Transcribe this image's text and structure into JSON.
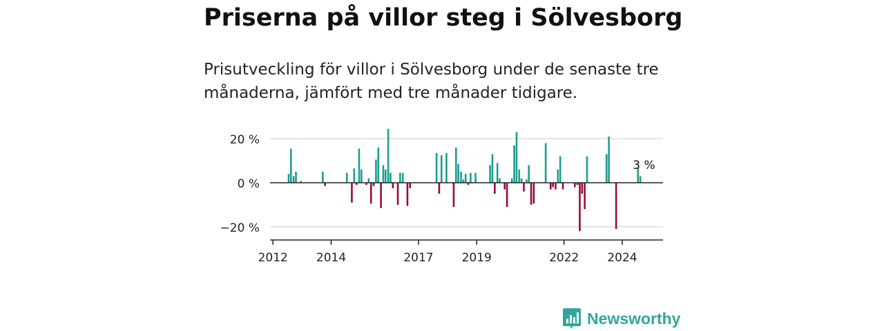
{
  "title": "Priserna på villor steg i Sölvesborg",
  "subtitle": "Prisutveckling för villor i Sölvesborg under de senaste tre månaderna, jämfört med tre månader tidigare.",
  "brand": {
    "name": "Newsworthy"
  },
  "colors": {
    "positive": "#1a9e90",
    "negative": "#960a3c",
    "grid": "#dddddd",
    "axis": "#222222",
    "brand": "#2fa89b"
  },
  "chart_data": {
    "type": "bar",
    "ylim": [
      -26,
      26
    ],
    "xlim": [
      2011.9,
      2025.4
    ],
    "grid": true,
    "y_ticks": [
      {
        "value": 20,
        "label": "20 %"
      },
      {
        "value": 0,
        "label": "0 %"
      },
      {
        "value": -20,
        "label": "−20 %"
      }
    ],
    "x_ticks": [
      {
        "value": 2012,
        "label": "2012"
      },
      {
        "value": 2014,
        "label": "2014"
      },
      {
        "value": 2017,
        "label": "2017"
      },
      {
        "value": 2019,
        "label": "2019"
      },
      {
        "value": 2022,
        "label": "2022"
      },
      {
        "value": 2024,
        "label": "2024"
      }
    ],
    "annotation": {
      "x": 2024.7,
      "value": 3,
      "label": "3 %"
    },
    "x": [
      2012.54,
      2012.62,
      2012.71,
      2012.79,
      2012.96,
      2013.71,
      2013.79,
      2014.54,
      2014.71,
      2014.79,
      2014.87,
      2014.96,
      2015.04,
      2015.21,
      2015.29,
      2015.37,
      2015.46,
      2015.54,
      2015.62,
      2015.71,
      2015.79,
      2015.87,
      2015.96,
      2016.04,
      2016.12,
      2016.29,
      2016.37,
      2016.46,
      2016.62,
      2016.71,
      2017.62,
      2017.71,
      2017.79,
      2017.96,
      2018.21,
      2018.29,
      2018.37,
      2018.46,
      2018.54,
      2018.62,
      2018.71,
      2018.79,
      2018.96,
      2019.46,
      2019.54,
      2019.62,
      2019.71,
      2019.79,
      2019.96,
      2020.04,
      2020.21,
      2020.29,
      2020.37,
      2020.46,
      2020.54,
      2020.62,
      2020.71,
      2020.79,
      2020.87,
      2020.96,
      2021.37,
      2021.54,
      2021.62,
      2021.71,
      2021.79,
      2021.87,
      2021.96,
      2022.37,
      2022.46,
      2022.54,
      2022.62,
      2022.71,
      2022.79,
      2023.46,
      2023.54,
      2023.79,
      2024.54,
      2024.62
    ],
    "values": [
      4,
      15.5,
      3,
      5,
      0.8,
      5,
      -1.5,
      4.5,
      -9,
      6.5,
      -1,
      15.5,
      6,
      -1,
      2,
      -9.5,
      -1.5,
      10.5,
      16,
      -11.5,
      8,
      6,
      24.5,
      4.5,
      -2.5,
      -10,
      4.5,
      4.5,
      -10.5,
      -2.5,
      13.5,
      -5,
      12.5,
      13.5,
      -11,
      16,
      8.5,
      5,
      1.5,
      4,
      -1,
      4.5,
      4.5,
      8,
      13,
      -5,
      9,
      2,
      -3,
      -11,
      2,
      17,
      23,
      6,
      2,
      -4,
      1.5,
      8,
      -10,
      -9.5,
      18,
      -3,
      -2,
      -3,
      6,
      12,
      -3,
      -2,
      -1,
      -22,
      -5,
      -12,
      12,
      13,
      21,
      -21,
      7,
      3
    ]
  }
}
